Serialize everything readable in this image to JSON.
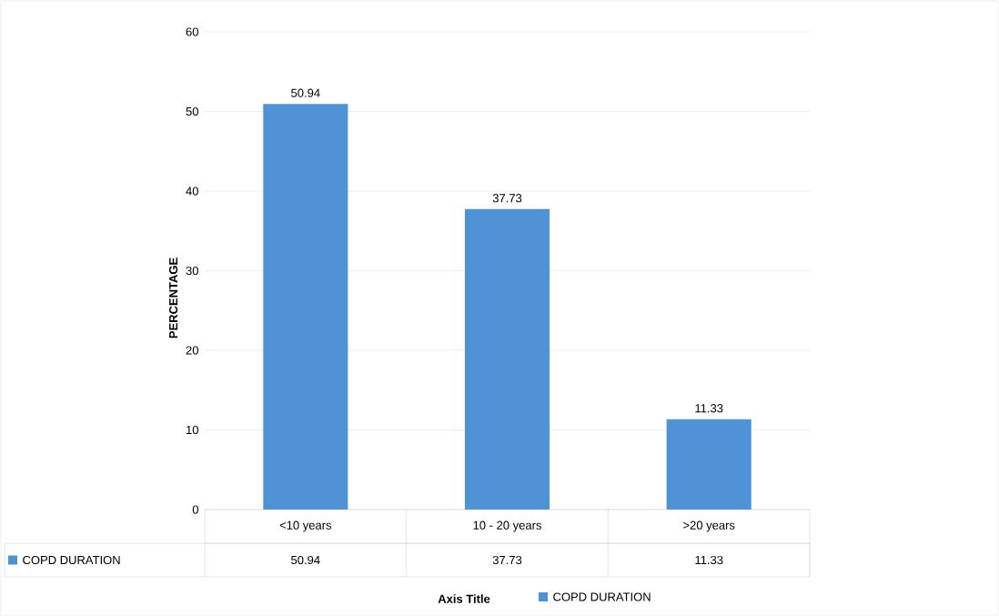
{
  "chart_data": {
    "type": "bar",
    "ylabel": "PERCENTAGE",
    "annotations": [
      "Axis Title"
    ],
    "categories": [
      "<10  years",
      "10 - 20 years",
      ">20 years"
    ],
    "series": [
      {
        "name": "COPD DURATION",
        "color": "#4f92d6",
        "values": [
          50.94,
          37.73,
          11.33
        ],
        "value_labels": [
          "50.94",
          "37.73",
          "11.33"
        ]
      }
    ],
    "ylim": [
      0,
      60
    ],
    "yticks": [
      0,
      10,
      20,
      30,
      40,
      50,
      60
    ],
    "grid": "y",
    "data_labels": true,
    "legend": "bottom"
  }
}
